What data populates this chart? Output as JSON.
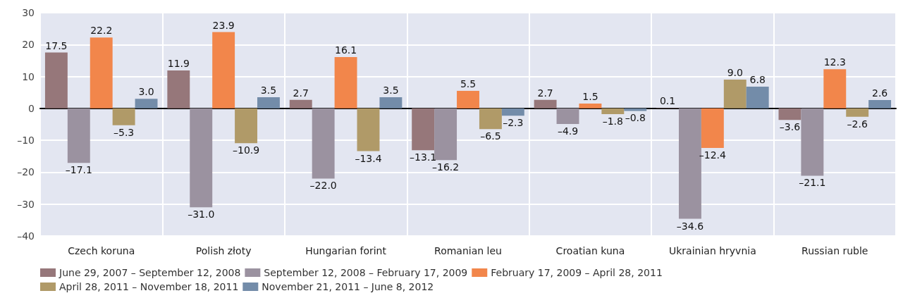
{
  "chart_data": {
    "type": "bar",
    "categories": [
      "Czech koruna",
      "Polish złoty",
      "Hungarian forint",
      "Romanian leu",
      "Croatian kuna",
      "Ukrainian hryvnia",
      "Russian ruble"
    ],
    "series": [
      {
        "name": "June 29, 2007 – September 12, 2008",
        "color": "#96777a",
        "values": [
          17.5,
          11.9,
          2.7,
          -13.1,
          2.7,
          0.1,
          -3.6
        ],
        "value_labels": [
          "17.5",
          "11.9",
          "2.7",
          "–13.1",
          "2.7",
          "0.1",
          "–3.6"
        ]
      },
      {
        "name": "September 12, 2008 – February 17, 2009",
        "color": "#9b92a0",
        "values": [
          -17.1,
          -31.0,
          -22.0,
          -16.2,
          -4.9,
          -34.6,
          -21.1
        ],
        "value_labels": [
          "–17.1",
          "–31.0",
          "–22.0",
          "–16.2",
          "–4.9",
          "–34.6",
          "–21.1"
        ]
      },
      {
        "name": "February 17, 2009 – April 28, 2011",
        "color": "#f2864b",
        "values": [
          22.2,
          23.9,
          16.1,
          5.5,
          1.5,
          -12.4,
          12.3
        ],
        "value_labels": [
          "22.2",
          "23.9",
          "16.1",
          "5.5",
          "1.5",
          "–12.4",
          "12.3"
        ]
      },
      {
        "name": "April 28, 2011 – November 18, 2011",
        "color": "#b09a68",
        "values": [
          -5.3,
          -10.9,
          -13.4,
          -6.5,
          -1.8,
          9.0,
          -2.6
        ],
        "value_labels": [
          "–5.3",
          "–10.9",
          "–13.4",
          "–6.5",
          "–1.8",
          "9.0",
          "–2.6"
        ]
      },
      {
        "name": "November 21, 2011 – June 8, 2012",
        "color": "#738ca9",
        "values": [
          3.0,
          3.5,
          3.5,
          -2.3,
          -0.8,
          6.8,
          2.6
        ],
        "value_labels": [
          "3.0",
          "3.5",
          "3.5",
          "–2.3",
          "–0.8",
          "6.8",
          "2.6"
        ]
      }
    ],
    "ylim": [
      -40,
      30
    ],
    "yticks": [
      30,
      20,
      10,
      0,
      {
        "value": -10,
        "label": "–10"
      },
      {
        "value": -20,
        "label": "–20"
      },
      {
        "value": -30,
        "label": "–30"
      },
      {
        "value": -40,
        "label": "–40"
      }
    ],
    "grid": true,
    "legend": "bottom"
  }
}
